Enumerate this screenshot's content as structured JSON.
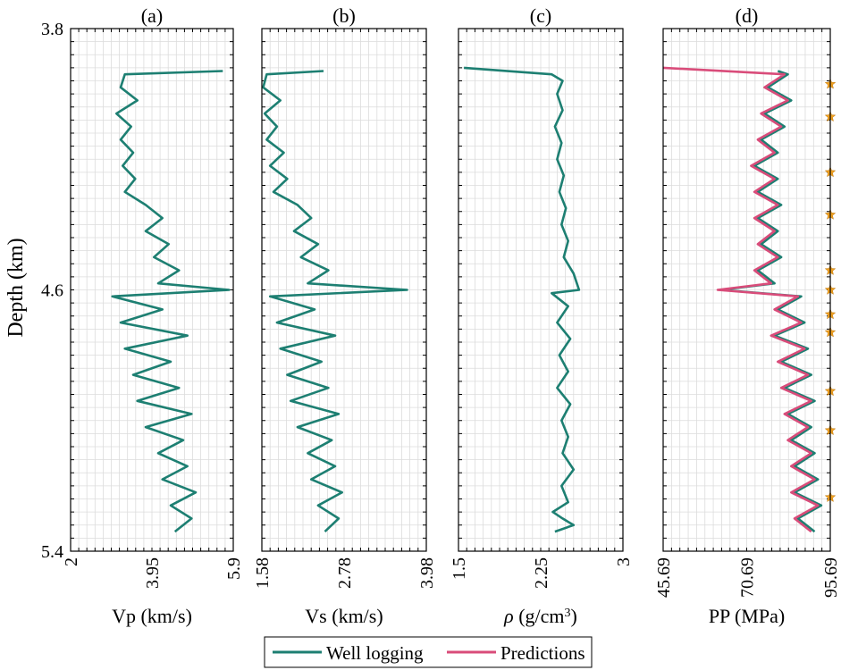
{
  "chart_data": {
    "type": "line",
    "ylabel": "Depth (km)",
    "ylim": [
      3.8,
      5.4
    ],
    "y_ticks": [
      "3.8",
      "4.6",
      "5.4"
    ],
    "colors": {
      "well": "#1d7f72",
      "pred": "#d94c7a",
      "star": "#f0a020"
    },
    "panels": [
      {
        "title": "(a)",
        "xlabel": "Vp (km/s)",
        "xlim": [
          2,
          5.9
        ],
        "x_ticks": [
          "2",
          "3.95",
          "5.9"
        ],
        "series": [
          {
            "name": "Well logging",
            "points": [
              [
                5.65,
                3.93
              ],
              [
                3.3,
                3.94
              ],
              [
                3.2,
                3.98
              ],
              [
                3.6,
                4.02
              ],
              [
                3.1,
                4.06
              ],
              [
                3.45,
                4.1
              ],
              [
                3.2,
                4.14
              ],
              [
                3.5,
                4.18
              ],
              [
                3.25,
                4.22
              ],
              [
                3.55,
                4.26
              ],
              [
                3.3,
                4.3
              ],
              [
                3.8,
                4.34
              ],
              [
                4.2,
                4.38
              ],
              [
                3.8,
                4.42
              ],
              [
                4.35,
                4.46
              ],
              [
                4.0,
                4.5
              ],
              [
                4.6,
                4.54
              ],
              [
                4.1,
                4.58
              ],
              [
                5.8,
                4.6
              ],
              [
                3.0,
                4.62
              ],
              [
                4.2,
                4.66
              ],
              [
                3.2,
                4.7
              ],
              [
                4.8,
                4.74
              ],
              [
                3.3,
                4.78
              ],
              [
                4.4,
                4.82
              ],
              [
                3.5,
                4.86
              ],
              [
                4.6,
                4.9
              ],
              [
                3.6,
                4.94
              ],
              [
                4.9,
                4.98
              ],
              [
                3.8,
                5.02
              ],
              [
                4.7,
                5.06
              ],
              [
                4.1,
                5.1
              ],
              [
                4.8,
                5.14
              ],
              [
                4.2,
                5.18
              ],
              [
                5.0,
                5.22
              ],
              [
                4.4,
                5.26
              ],
              [
                4.9,
                5.3
              ],
              [
                4.5,
                5.34
              ]
            ]
          }
        ]
      },
      {
        "title": "(b)",
        "xlabel": "Vs (km/s)",
        "xlim": [
          1.58,
          3.98
        ],
        "x_ticks": [
          "1.58",
          "2.78",
          "3.98"
        ],
        "series": [
          {
            "name": "Well logging",
            "points": [
              [
                2.48,
                3.93
              ],
              [
                1.65,
                3.94
              ],
              [
                1.6,
                3.98
              ],
              [
                1.85,
                4.02
              ],
              [
                1.62,
                4.06
              ],
              [
                1.8,
                4.1
              ],
              [
                1.65,
                4.14
              ],
              [
                1.9,
                4.18
              ],
              [
                1.7,
                4.22
              ],
              [
                1.95,
                4.26
              ],
              [
                1.75,
                4.3
              ],
              [
                2.1,
                4.34
              ],
              [
                2.3,
                4.38
              ],
              [
                2.05,
                4.42
              ],
              [
                2.4,
                4.46
              ],
              [
                2.15,
                4.5
              ],
              [
                2.55,
                4.54
              ],
              [
                2.25,
                4.58
              ],
              [
                3.7,
                4.6
              ],
              [
                1.7,
                4.62
              ],
              [
                2.35,
                4.66
              ],
              [
                1.8,
                4.7
              ],
              [
                2.65,
                4.74
              ],
              [
                1.85,
                4.78
              ],
              [
                2.45,
                4.82
              ],
              [
                1.95,
                4.86
              ],
              [
                2.55,
                4.9
              ],
              [
                2.0,
                4.94
              ],
              [
                2.7,
                4.98
              ],
              [
                2.1,
                5.02
              ],
              [
                2.6,
                5.06
              ],
              [
                2.25,
                5.1
              ],
              [
                2.65,
                5.14
              ],
              [
                2.3,
                5.18
              ],
              [
                2.75,
                5.22
              ],
              [
                2.4,
                5.26
              ],
              [
                2.7,
                5.3
              ],
              [
                2.5,
                5.34
              ]
            ]
          }
        ]
      },
      {
        "title": "(c)",
        "xlabel": "ρ (g/cm³)",
        "xlim": [
          1.5,
          3.0
        ],
        "x_ticks": [
          "1.5",
          "2.25",
          "3"
        ],
        "series": [
          {
            "name": "Well logging",
            "points": [
              [
                1.55,
                3.92
              ],
              [
                2.35,
                3.94
              ],
              [
                2.45,
                3.96
              ],
              [
                2.4,
                4.0
              ],
              [
                2.45,
                4.05
              ],
              [
                2.38,
                4.1
              ],
              [
                2.44,
                4.15
              ],
              [
                2.4,
                4.2
              ],
              [
                2.46,
                4.25
              ],
              [
                2.42,
                4.3
              ],
              [
                2.48,
                4.35
              ],
              [
                2.44,
                4.4
              ],
              [
                2.5,
                4.45
              ],
              [
                2.46,
                4.5
              ],
              [
                2.55,
                4.55
              ],
              [
                2.6,
                4.6
              ],
              [
                2.35,
                4.61
              ],
              [
                2.5,
                4.65
              ],
              [
                2.4,
                4.7
              ],
              [
                2.52,
                4.75
              ],
              [
                2.42,
                4.8
              ],
              [
                2.5,
                4.85
              ],
              [
                2.4,
                4.9
              ],
              [
                2.52,
                4.95
              ],
              [
                2.44,
                5.0
              ],
              [
                2.5,
                5.05
              ],
              [
                2.45,
                5.1
              ],
              [
                2.55,
                5.15
              ],
              [
                2.44,
                5.2
              ],
              [
                2.5,
                5.25
              ],
              [
                2.36,
                5.28
              ],
              [
                2.45,
                5.3
              ],
              [
                2.55,
                5.32
              ],
              [
                2.38,
                5.34
              ]
            ]
          }
        ]
      },
      {
        "title": "(d)",
        "xlabel": "PP (MPa)",
        "xlim": [
          45.69,
          95.69
        ],
        "x_ticks": [
          "45.69",
          "70.69",
          "95.69"
        ],
        "series": [
          {
            "name": "Well logging",
            "points": [
              [
                80.0,
                3.93
              ],
              [
                83.0,
                3.94
              ],
              [
                77.0,
                3.98
              ],
              [
                84.0,
                4.02
              ],
              [
                76.0,
                4.06
              ],
              [
                82.0,
                4.1
              ],
              [
                75.0,
                4.14
              ],
              [
                80.0,
                4.18
              ],
              [
                73.0,
                4.22
              ],
              [
                80.0,
                4.26
              ],
              [
                74.0,
                4.3
              ],
              [
                81.0,
                4.34
              ],
              [
                74.0,
                4.38
              ],
              [
                80.0,
                4.42
              ],
              [
                75.0,
                4.46
              ],
              [
                81.0,
                4.5
              ],
              [
                74.0,
                4.54
              ],
              [
                79.0,
                4.58
              ],
              [
                63.0,
                4.6
              ],
              [
                87.0,
                4.62
              ],
              [
                80.0,
                4.66
              ],
              [
                88.0,
                4.7
              ],
              [
                79.0,
                4.74
              ],
              [
                89.0,
                4.78
              ],
              [
                81.0,
                4.82
              ],
              [
                90.0,
                4.86
              ],
              [
                82.0,
                4.9
              ],
              [
                91.0,
                4.94
              ],
              [
                83.0,
                4.98
              ],
              [
                90.0,
                5.02
              ],
              [
                84.0,
                5.06
              ],
              [
                91.0,
                5.1
              ],
              [
                85.0,
                5.14
              ],
              [
                92.0,
                5.18
              ],
              [
                85.0,
                5.22
              ],
              [
                93.0,
                5.26
              ],
              [
                86.0,
                5.3
              ],
              [
                91.0,
                5.34
              ]
            ]
          },
          {
            "name": "Predictions",
            "points": [
              [
                45.7,
                3.92
              ],
              [
                82.0,
                3.94
              ],
              [
                76.0,
                3.98
              ],
              [
                83.0,
                4.02
              ],
              [
                75.0,
                4.06
              ],
              [
                81.0,
                4.1
              ],
              [
                74.0,
                4.14
              ],
              [
                79.0,
                4.18
              ],
              [
                72.0,
                4.22
              ],
              [
                79.0,
                4.26
              ],
              [
                73.0,
                4.3
              ],
              [
                80.0,
                4.34
              ],
              [
                73.0,
                4.38
              ],
              [
                79.0,
                4.42
              ],
              [
                74.0,
                4.46
              ],
              [
                80.0,
                4.5
              ],
              [
                73.0,
                4.54
              ],
              [
                78.0,
                4.58
              ],
              [
                62.0,
                4.6
              ],
              [
                86.0,
                4.62
              ],
              [
                79.0,
                4.66
              ],
              [
                87.0,
                4.7
              ],
              [
                78.0,
                4.74
              ],
              [
                88.0,
                4.78
              ],
              [
                80.0,
                4.82
              ],
              [
                89.0,
                4.86
              ],
              [
                81.0,
                4.9
              ],
              [
                90.0,
                4.94
              ],
              [
                82.0,
                4.98
              ],
              [
                89.0,
                5.02
              ],
              [
                83.0,
                5.06
              ],
              [
                90.0,
                5.1
              ],
              [
                84.0,
                5.14
              ],
              [
                91.0,
                5.18
              ],
              [
                84.0,
                5.22
              ],
              [
                92.0,
                5.26
              ],
              [
                85.0,
                5.3
              ],
              [
                90.0,
                5.34
              ]
            ]
          }
        ],
        "star_depths": [
          3.97,
          4.07,
          4.24,
          4.37,
          4.54,
          4.6,
          4.675,
          4.73,
          4.91,
          5.03,
          5.235
        ]
      }
    ],
    "legend": {
      "entries": [
        {
          "label": "Well logging",
          "color": "#1d7f72"
        },
        {
          "label": "Predictions",
          "color": "#d94c7a"
        }
      ],
      "position": "bottom-center"
    }
  }
}
